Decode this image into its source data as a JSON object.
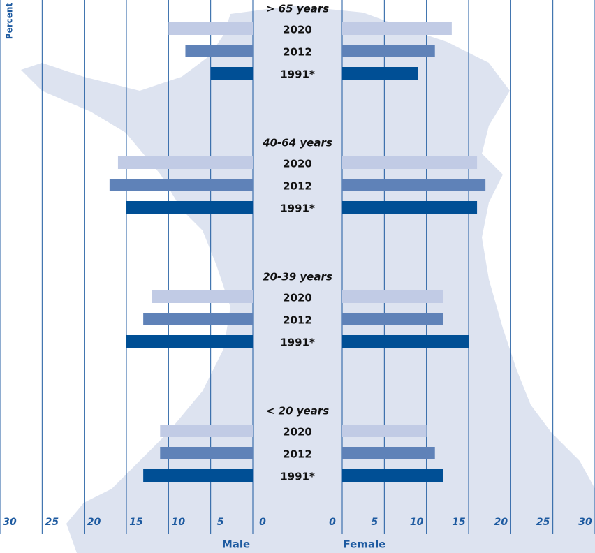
{
  "chart_data": {
    "type": "pyramid",
    "y_label": "Percent",
    "left_label": "Male",
    "right_label": "Female",
    "categories": [
      "> 65 years",
      "40-64 years",
      "20-39 years",
      "< 20 years"
    ],
    "series": [
      {
        "name": "2020",
        "color": "#c1cbe5",
        "male": [
          10,
          16,
          12,
          11
        ],
        "female": [
          13,
          16,
          12,
          10
        ]
      },
      {
        "name": "2012",
        "color": "#5f82b8",
        "male": [
          8,
          17,
          13,
          11
        ],
        "female": [
          11,
          17,
          12,
          11
        ]
      },
      {
        "name": "1991*",
        "color": "#004f95",
        "male": [
          5,
          15,
          15,
          13
        ],
        "female": [
          9,
          16,
          15,
          12
        ]
      }
    ],
    "xlim": [
      0,
      30
    ],
    "xticks": [
      0,
      5,
      10,
      15,
      20,
      25,
      30
    ],
    "grid": true
  }
}
